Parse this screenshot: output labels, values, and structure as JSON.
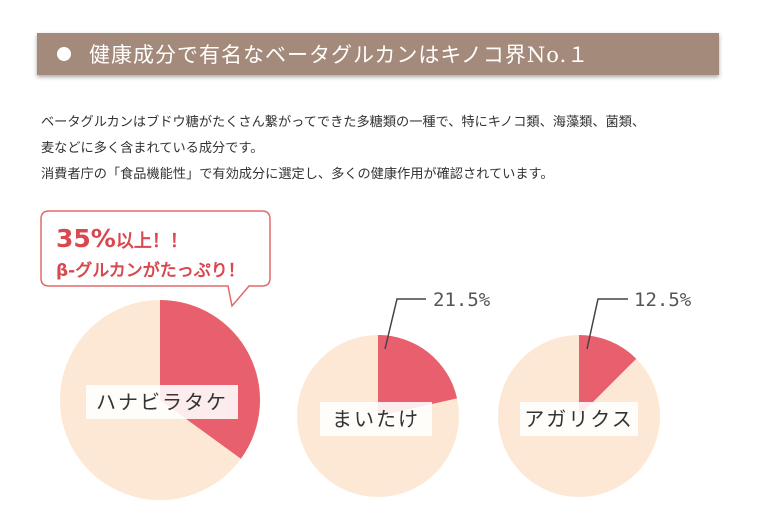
{
  "header": {
    "title": "健康成分で有名なベータグルカンはキノコ界No.１"
  },
  "description": {
    "line1": "ベータグルカンはブドウ糖がたくさん繋がってできた多糖類の一種で、特にキノコ類、海藻類、菌類、",
    "line2": "麦などに多く含まれている成分です。",
    "line3": "消費者庁の「食品機能性」で有効成分に選定し、多くの健康作用が確認されています。"
  },
  "callout": {
    "percent": "35%",
    "suffix": "以上！！",
    "line2": "β-グルカンがたっぷり！"
  },
  "colors": {
    "header_bg": "#a48a7b",
    "pie_base": "#fde8d6",
    "pie_slice": "#e8606e",
    "callout_text": "#d9474f",
    "callout_border": "#e26a6a"
  },
  "chart_data": [
    {
      "type": "pie",
      "name": "ハナビラタケ",
      "value_percent": 35,
      "label": ""
    },
    {
      "type": "pie",
      "name": "まいたけ",
      "value_percent": 21.5,
      "label": "21.5%"
    },
    {
      "type": "pie",
      "name": "アガリクス",
      "value_percent": 12.5,
      "label": "12.5%"
    }
  ]
}
